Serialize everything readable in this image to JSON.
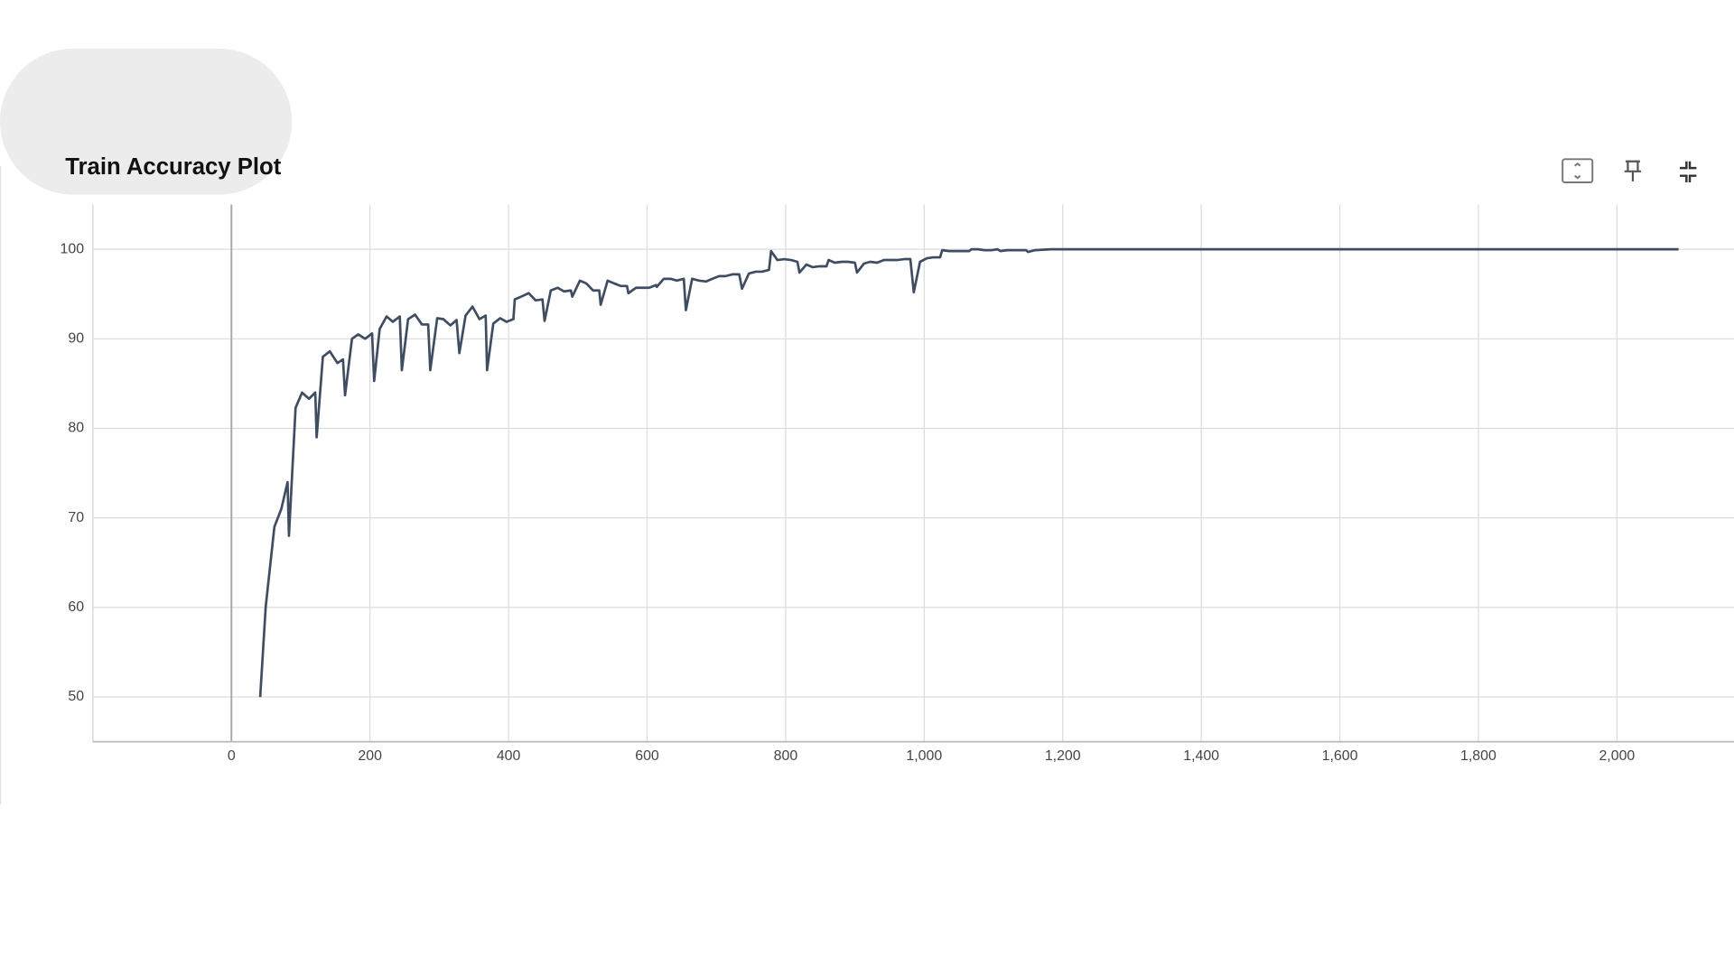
{
  "chart_data": {
    "type": "line",
    "title": "Train Accuracy Plot",
    "color": "#3f4d63",
    "grid": true,
    "xlim": [
      -200,
      2169
    ],
    "ylim": [
      45,
      105
    ],
    "xticks": [
      0,
      200,
      400,
      600,
      800,
      {
        "value": 1000,
        "label": "1,000"
      },
      {
        "value": 1200,
        "label": "1,200"
      },
      {
        "value": 1400,
        "label": "1,400"
      },
      {
        "value": 1600,
        "label": "1,600"
      },
      {
        "value": 1800,
        "label": "1,800"
      },
      {
        "value": 2000,
        "label": "2,000"
      }
    ],
    "yticks": [
      50,
      60,
      70,
      80,
      90,
      100
    ],
    "x": [
      41.5,
      49.5,
      62,
      72,
      81,
      83,
      92.6,
      102,
      112,
      121,
      123,
      132,
      142,
      153,
      161,
      164,
      174,
      183,
      193,
      203,
      206,
      214,
      224,
      233,
      243,
      246,
      255,
      265,
      275,
      284,
      287,
      297,
      306,
      316,
      325,
      329,
      338,
      348,
      358,
      367,
      369,
      378,
      388,
      397,
      407,
      409,
      418,
      429,
      439,
      449,
      452,
      461,
      471,
      480,
      490,
      492,
      503,
      512,
      522,
      531,
      533,
      543,
      552,
      562,
      571,
      573,
      584,
      594,
      603,
      613,
      614,
      624,
      634,
      643,
      653,
      656,
      665,
      675,
      685,
      694,
      704,
      713,
      723,
      733,
      737,
      747,
      757,
      766,
      776,
      779,
      788,
      798,
      808,
      817,
      820,
      830,
      839,
      849,
      859,
      862,
      871,
      881,
      890,
      900,
      903,
      913,
      922,
      932,
      942,
      951,
      961,
      971,
      980,
      985,
      994,
      1004,
      1013,
      1023,
      1026,
      1036,
      1045,
      1055,
      1065,
      1068,
      1078,
      1087,
      1097,
      1106,
      1110,
      1119,
      1128,
      1138,
      1147,
      1150,
      1160,
      1183,
      2089
    ],
    "values": [
      50,
      60.1,
      69,
      71,
      74,
      68,
      82.3,
      84,
      83.3,
      84,
      79,
      88,
      88.6,
      87.3,
      87.7,
      83.7,
      90,
      90.5,
      90,
      90.6,
      85.3,
      91.1,
      92.5,
      91.9,
      92.5,
      86.5,
      92.2,
      92.7,
      91.6,
      91.6,
      86.5,
      92.3,
      92.2,
      91.5,
      92.1,
      88.4,
      92.6,
      93.6,
      92.2,
      92.6,
      86.5,
      91.7,
      92.3,
      91.9,
      92.2,
      94.4,
      94.7,
      95.1,
      94.3,
      94.4,
      92,
      95.4,
      95.7,
      95.3,
      95.4,
      94.7,
      96.5,
      96.2,
      95.4,
      95.4,
      93.8,
      96.5,
      96.2,
      95.9,
      95.9,
      95.1,
      95.7,
      95.7,
      95.7,
      96,
      95.8,
      96.7,
      96.7,
      96.5,
      96.7,
      93.2,
      96.7,
      96.5,
      96.4,
      96.7,
      97,
      97,
      97.2,
      97.2,
      95.6,
      97.3,
      97.5,
      97.5,
      97.7,
      99.8,
      98.8,
      98.9,
      98.8,
      98.6,
      97.4,
      98.3,
      98,
      98.1,
      98.1,
      98.8,
      98.5,
      98.6,
      98.6,
      98.5,
      97.4,
      98.4,
      98.6,
      98.5,
      98.8,
      98.8,
      98.8,
      98.9,
      98.9,
      95.2,
      98.6,
      99,
      99.1,
      99.1,
      99.9,
      99.8,
      99.8,
      99.8,
      99.8,
      100,
      100,
      99.9,
      99.9,
      100,
      99.8,
      99.9,
      99.9,
      99.9,
      99.9,
      99.7,
      99.9,
      100,
      100
    ]
  }
}
